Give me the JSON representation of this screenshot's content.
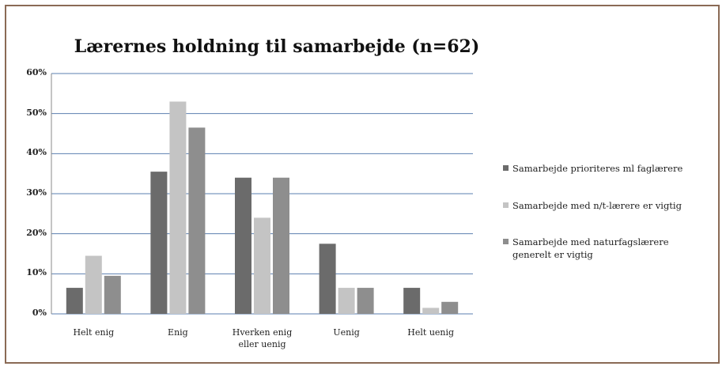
{
  "chart_data": {
    "type": "bar",
    "title": "Lærernes holdning til samarbejde (n=62)",
    "categories": [
      "Helt enig",
      "Enig",
      "Hverken enig eller uenig",
      "Uenig",
      "Helt uenig"
    ],
    "series": [
      {
        "name": "Samarbejde prioriteres ml faglærere",
        "color": "#6b6b6b",
        "values": [
          6.5,
          35.5,
          34,
          17.5,
          6.5
        ]
      },
      {
        "name": "Samarbejde med n/t-lærere er vigtig",
        "color": "#c4c4c4",
        "values": [
          14.5,
          53,
          24,
          6.5,
          1.5
        ]
      },
      {
        "name": "Samarbejde med naturfagslærere generelt er vigtig",
        "color": "#8e8e8e",
        "values": [
          9.5,
          46.5,
          34,
          6.5,
          3
        ]
      }
    ],
    "ylim": [
      0,
      60
    ],
    "yticks": [
      {
        "value": 0,
        "label": "0%"
      },
      {
        "value": 10,
        "label": "10%"
      },
      {
        "value": 20,
        "label": "20%"
      },
      {
        "value": 30,
        "label": "30%"
      },
      {
        "value": 40,
        "label": "40%"
      },
      {
        "value": 50,
        "label": "50%"
      },
      {
        "value": 60,
        "label": "60%"
      }
    ],
    "grid": true
  }
}
